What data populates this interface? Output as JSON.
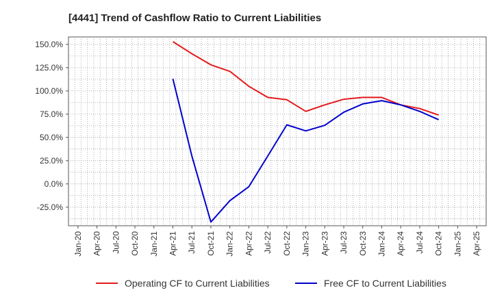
{
  "chart_data": {
    "type": "line",
    "title": "[4441]  Trend of Cashflow Ratio to Current Liabilities",
    "xlabel": "",
    "ylabel": "",
    "x_ticks": [
      "Jan-20",
      "Apr-20",
      "Jul-20",
      "Oct-20",
      "Jan-21",
      "Apr-21",
      "Jul-21",
      "Oct-21",
      "Jan-22",
      "Apr-22",
      "Jul-22",
      "Oct-22",
      "Jan-23",
      "Apr-23",
      "Jul-23",
      "Oct-23",
      "Jan-24",
      "Apr-24",
      "Jul-24",
      "Oct-24",
      "Jan-25",
      "Apr-25"
    ],
    "y_ticks": [
      150,
      125,
      100,
      75,
      50,
      25,
      0,
      -25
    ],
    "y_tick_labels": [
      "150.0%",
      "125.0%",
      "100.0%",
      "75.0%",
      "50.0%",
      "25.0%",
      "0.0%",
      "-25.0%"
    ],
    "ylim": [
      -45,
      158
    ],
    "grid": true,
    "legend_position": "bottom",
    "series": [
      {
        "name": "Operating CF to Current Liabilities",
        "color": "#e31a1c",
        "x": [
          "Apr-21",
          "Jul-21",
          "Oct-21",
          "Jan-22",
          "Apr-22",
          "Jul-22",
          "Oct-22",
          "Jan-23",
          "Apr-23",
          "Jul-23",
          "Oct-23",
          "Jan-24",
          "Apr-24",
          "Jul-24",
          "Oct-24"
        ],
        "values": [
          153,
          140,
          128,
          121,
          105,
          93,
          90.5,
          78,
          85,
          91,
          93,
          93,
          85,
          81,
          74
        ]
      },
      {
        "name": "Free CF to Current Liabilities",
        "color": "#0000cc",
        "x": [
          "Apr-21",
          "Jul-21",
          "Oct-21",
          "Jan-22",
          "Apr-22",
          "Jul-22",
          "Oct-22",
          "Jan-23",
          "Apr-23",
          "Jul-23",
          "Oct-23",
          "Jan-24",
          "Apr-24",
          "Jul-24",
          "Oct-24"
        ],
        "values": [
          113,
          30,
          -41,
          -18,
          -3,
          30,
          63.5,
          57,
          63,
          77,
          86,
          89.5,
          85,
          78,
          69
        ]
      }
    ]
  }
}
